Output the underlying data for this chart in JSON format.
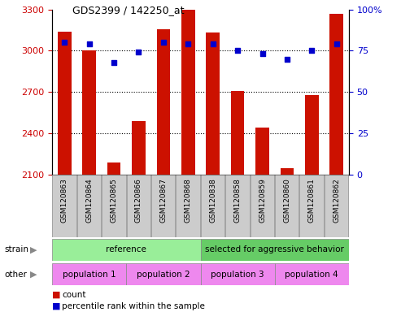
{
  "title": "GDS2399 / 142250_at",
  "samples": [
    "GSM120863",
    "GSM120864",
    "GSM120865",
    "GSM120866",
    "GSM120867",
    "GSM120868",
    "GSM120838",
    "GSM120858",
    "GSM120859",
    "GSM120860",
    "GSM120861",
    "GSM120862"
  ],
  "counts": [
    3140,
    3000,
    2190,
    2490,
    3155,
    3300,
    3130,
    2710,
    2440,
    2150,
    2680,
    3270
  ],
  "percentile_ranks": [
    80,
    79,
    68,
    74,
    80,
    79,
    79,
    75,
    73,
    70,
    75,
    79
  ],
  "ylim_left": [
    2100,
    3300
  ],
  "ylim_right": [
    0,
    100
  ],
  "yticks_left": [
    2100,
    2400,
    2700,
    3000,
    3300
  ],
  "yticks_right": [
    0,
    25,
    50,
    75,
    100
  ],
  "bar_color": "#CC1100",
  "dot_color": "#0000CC",
  "bar_width": 0.55,
  "strain_labels": [
    {
      "text": "reference",
      "start": 0,
      "end": 6,
      "color": "#99EE99"
    },
    {
      "text": "selected for aggressive behavior",
      "start": 6,
      "end": 12,
      "color": "#66CC66"
    }
  ],
  "other_labels": [
    {
      "text": "population 1",
      "start": 0,
      "end": 3,
      "color": "#EE88EE"
    },
    {
      "text": "population 2",
      "start": 3,
      "end": 6,
      "color": "#EE88EE"
    },
    {
      "text": "population 3",
      "start": 6,
      "end": 9,
      "color": "#EE88EE"
    },
    {
      "text": "population 4",
      "start": 9,
      "end": 12,
      "color": "#EE88EE"
    }
  ],
  "legend_count_color": "#CC1100",
  "legend_dot_color": "#0000CC",
  "left_tick_color": "#CC0000",
  "right_tick_color": "#0000CC",
  "tick_label_bg": "#CCCCCC",
  "grid_yticks": [
    3000,
    2700,
    2400
  ],
  "fig_width": 4.93,
  "fig_height": 3.84
}
